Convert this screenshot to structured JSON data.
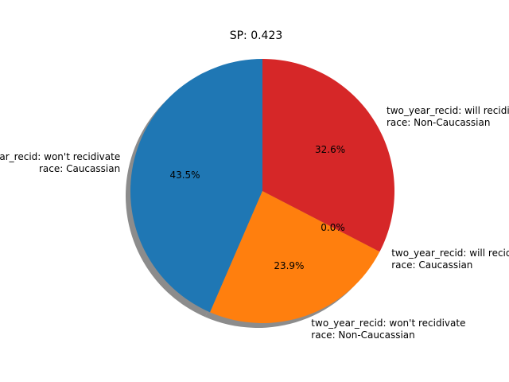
{
  "chart_data": {
    "type": "pie",
    "title": "SP: 0.423",
    "shadow": true,
    "start_angle_deg": 90,
    "slices": [
      {
        "label_line1": "two_year_recid: won't recidivate",
        "label_line2": "race: Caucassian",
        "value": 43.5,
        "pct_label": "43.5%",
        "color": "#1f77b4"
      },
      {
        "label_line1": "two_year_recid: won't recidivate",
        "label_line2": "race: Non-Caucassian",
        "value": 23.9,
        "pct_label": "23.9%",
        "color": "#ff7f0e"
      },
      {
        "label_line1": "two_year_recid: will recidivate",
        "label_line2": "race: Caucassian",
        "value": 0.0,
        "pct_label": "0.0%",
        "color": "#2ca02c"
      },
      {
        "label_line1": "two_year_recid: will recidivate",
        "label_line2": "race: Non-Caucassian",
        "value": 32.6,
        "pct_label": "32.6%",
        "color": "#d62728"
      }
    ]
  }
}
